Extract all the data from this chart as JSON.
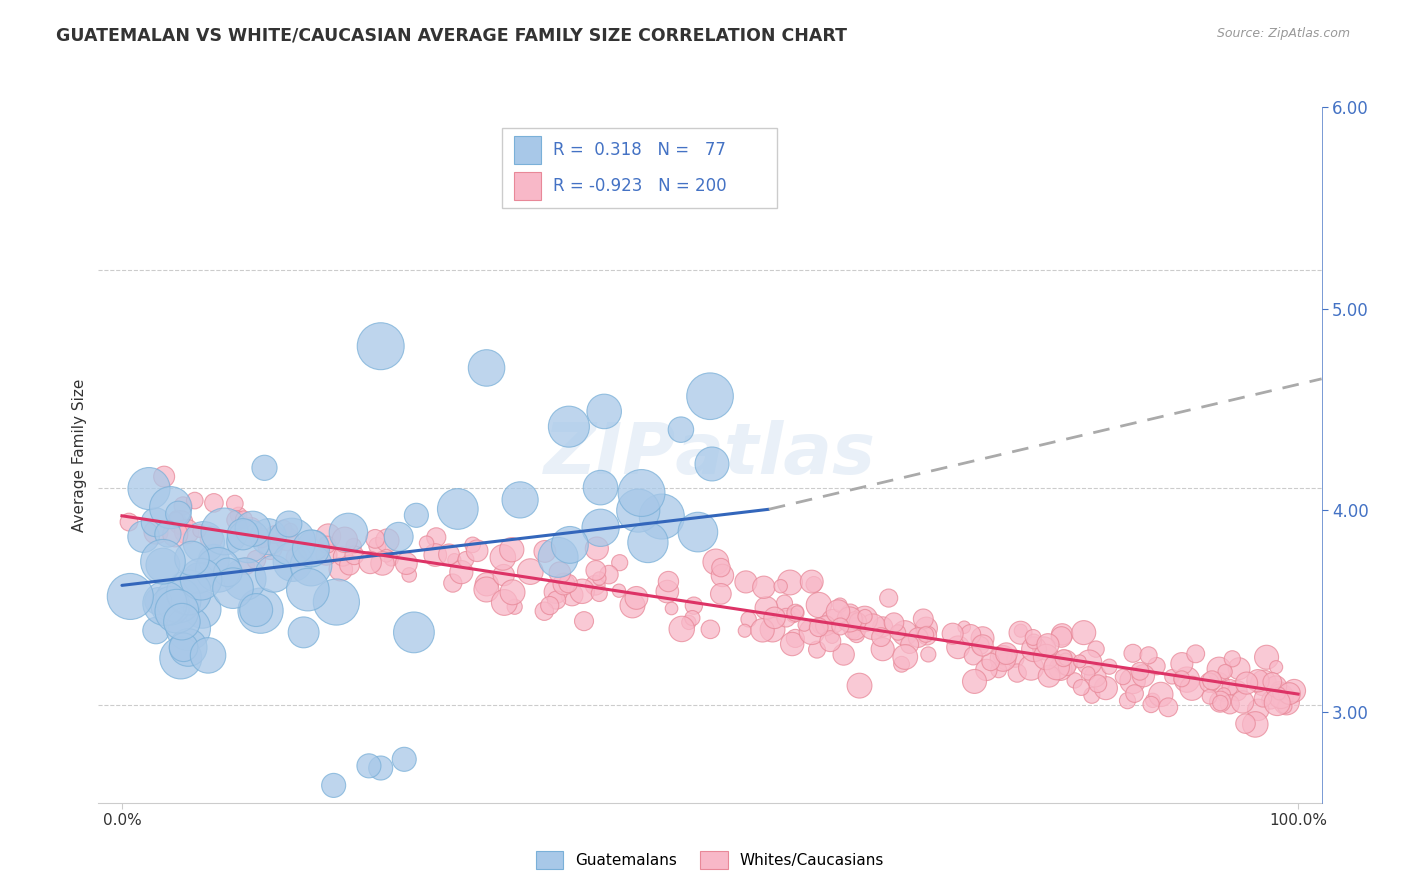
{
  "title": "GUATEMALAN VS WHITE/CAUCASIAN AVERAGE FAMILY SIZE CORRELATION CHART",
  "source_text": "Source: ZipAtlas.com",
  "ylabel": "Average Family Size",
  "xlim": [
    -0.02,
    1.02
  ],
  "ylim": [
    2.55,
    5.75
  ],
  "yticks_right": [
    3.0,
    4.0,
    5.0,
    6.0
  ],
  "xticklabels": [
    "0.0%",
    "100.0%"
  ],
  "legend_labels": [
    "Guatemalans",
    "Whites/Caucasians"
  ],
  "scatter1_face": "#a8c8e8",
  "scatter1_edge": "#7ab0d8",
  "scatter2_face": "#f8b8c8",
  "scatter2_edge": "#e88898",
  "line1_color": "#3366bb",
  "line2_color": "#dd3366",
  "line1_dash_color": "#aaaaaa",
  "ytick_color": "#4472c4",
  "R1": 0.318,
  "N1": 77,
  "R2": -0.923,
  "N2": 200,
  "watermark": "ZIPatlas",
  "background_color": "#ffffff",
  "grid_color": "#cccccc",
  "title_color": "#333333",
  "source_color": "#999999"
}
